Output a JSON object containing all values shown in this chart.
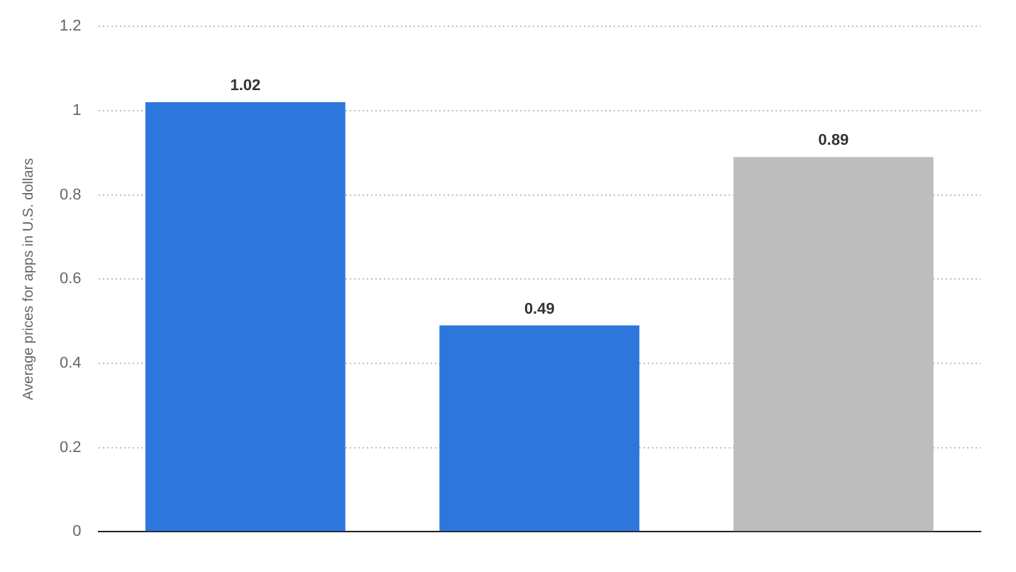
{
  "chart_data": {
    "type": "bar",
    "ylabel": "Average prices for apps in U.S. dollars",
    "categories": [
      null,
      null,
      null
    ],
    "values": [
      1.02,
      0.49,
      0.89
    ],
    "colors": [
      "#2d77dc",
      "#2d77dc",
      "#bdbdbd"
    ],
    "ylim": [
      0,
      1.2
    ],
    "yticks": [
      0,
      0.2,
      0.4,
      0.6,
      0.8,
      1,
      1.2
    ],
    "grid": "y",
    "data_labels": true,
    "legend": false
  }
}
